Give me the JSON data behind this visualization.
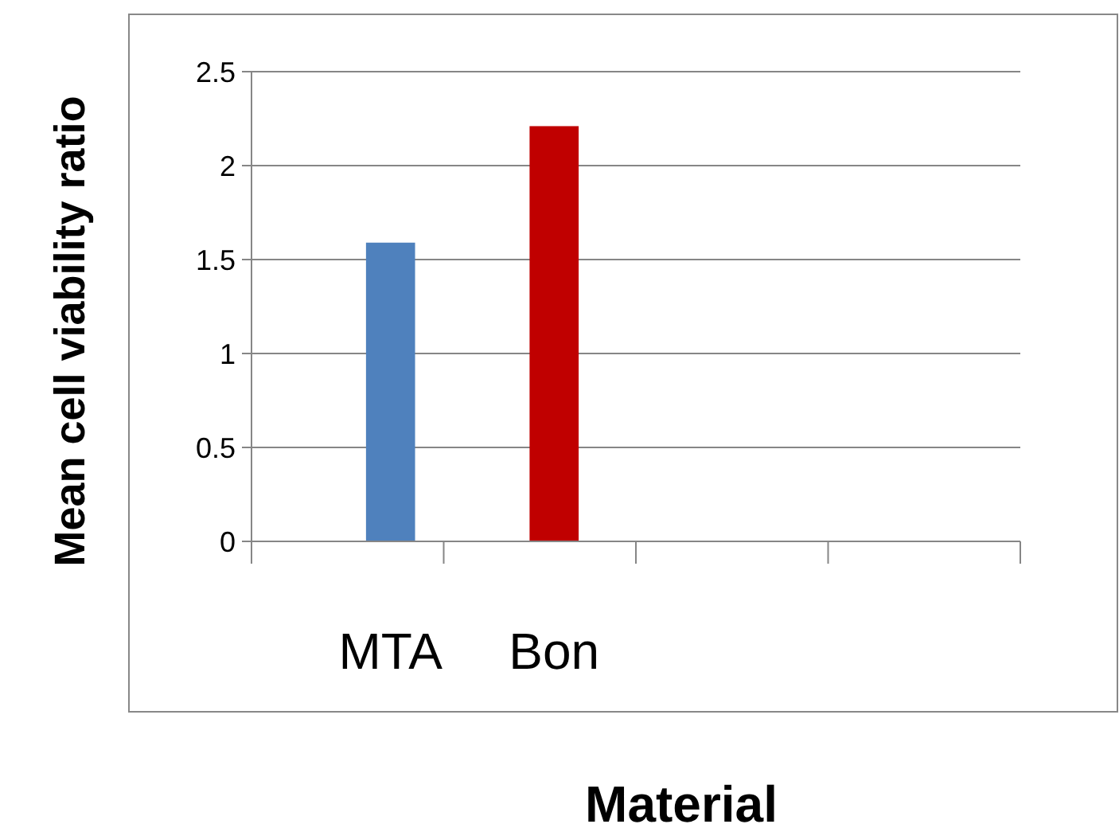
{
  "chart_data": {
    "type": "bar",
    "xlabel": "Material",
    "ylabel": "Mean cell viability ratio",
    "categories": [
      "MTA",
      "Bon",
      null,
      null
    ],
    "values": [
      1.59,
      2.21,
      null,
      null
    ],
    "colors": [
      "#4f81bd",
      "#c00000",
      null,
      null
    ],
    "ylim": [
      0,
      2.5
    ],
    "yticks": [
      0,
      0.5,
      1,
      1.5,
      2,
      2.5
    ],
    "grid": "y"
  }
}
